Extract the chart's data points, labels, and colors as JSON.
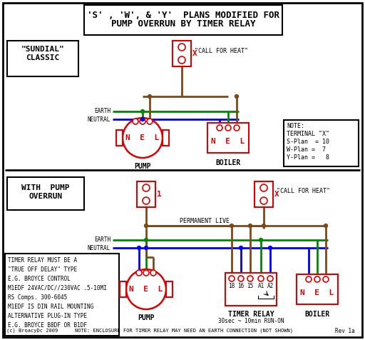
{
  "title_line1": "'S' , 'W', & 'Y'  PLANS MODIFIED FOR",
  "title_line2": "PUMP OVERRUN BY TIMER RELAY",
  "bg_color": "#ffffff",
  "wire_brown": "#7B4A1A",
  "wire_green": "#008800",
  "wire_blue": "#0000ee",
  "red_color": "#dd0000",
  "black_color": "#000000",
  "note_top_lines": [
    "NOTE:",
    "TERMINAL \"X\"",
    "S-Plan  = 10",
    "W-Plan =  7",
    "Y-Plan =   8"
  ],
  "note_bottom_lines": [
    "TIMER RELAY MUST BE A",
    "\"TRUE OFF DELAY\" TYPE",
    "E.G. BROYCE CONTROL",
    "M1EDF 24VAC/DC//230VAC .5-10MI",
    "RS Comps. 300-6045",
    "M1EDF IS DIN RAIL MOUNTING",
    "ALTERNATIVE PLUG-IN TYPE",
    "E.G. BROYCE B8DF OR B1DF"
  ],
  "bottom_note": "NOTE: ENCLOSURE FOR TIMER RELAY MAY NEED AN EARTH CONNECTION (NOT SHOWN)",
  "timer_note": "30sec ~ 10min RUN-ON",
  "rev_note": "Rev 1a",
  "copyright": "(c) BroacyDc 2009"
}
